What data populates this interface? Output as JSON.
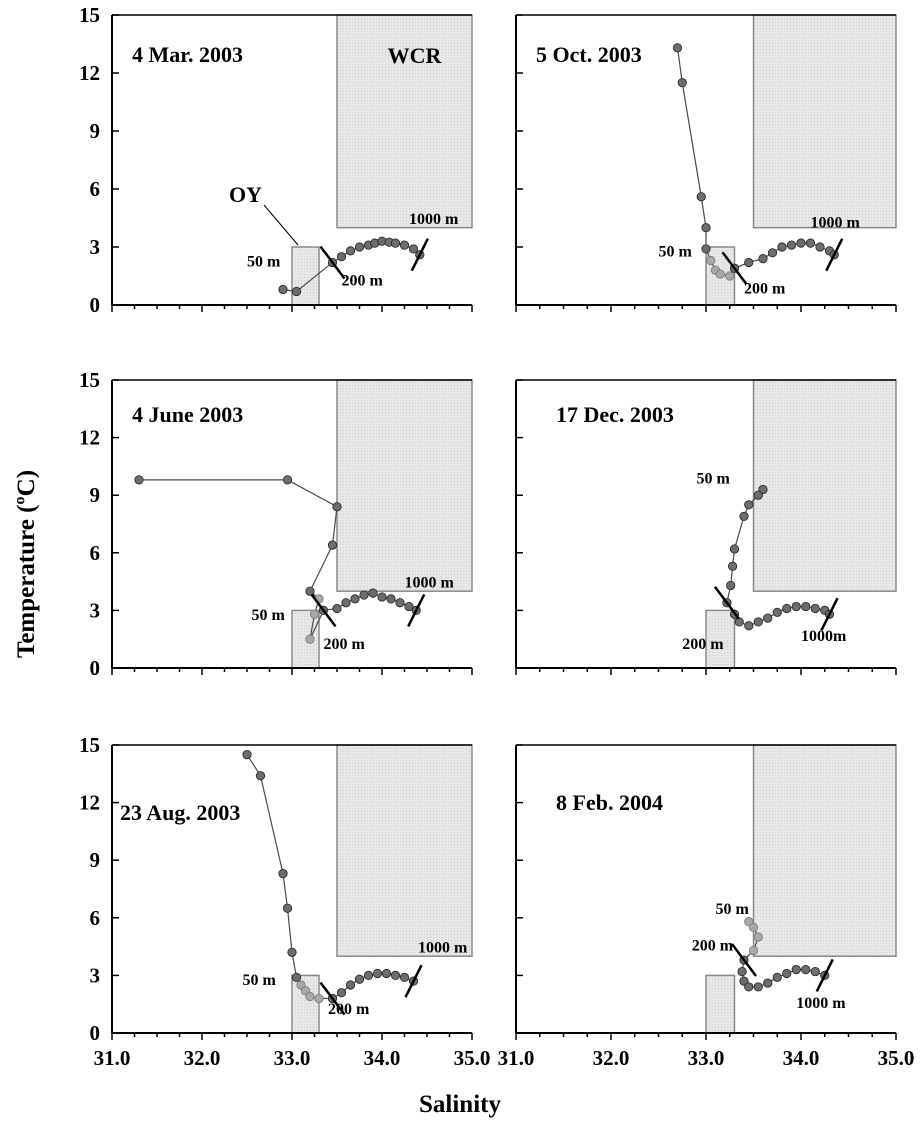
{
  "y_axis_label": "Temperature (ºC)",
  "x_axis_label": "Salinity",
  "colors": {
    "box_fill": "#e7e7e7",
    "box_stroke": "#8a8a8a",
    "point_dark": "#6d6d6d",
    "point_light": "#a8a8a8",
    "line": "#4a4a4a"
  },
  "chart_data": [
    {
      "type": "scatter",
      "title": "4 Mar. 2003",
      "xlim": [
        31.0,
        35.0
      ],
      "ylim": [
        0,
        15
      ],
      "xticks": [
        "31.0",
        "32.0",
        "33.0",
        "34.0",
        "35.0"
      ],
      "yticks": [
        "0",
        "3",
        "6",
        "9",
        "12",
        "15"
      ],
      "show_x_tick_labels": false,
      "show_y_tick_labels": true,
      "regions": [
        {
          "label": "OY",
          "x": [
            33.0,
            33.3
          ],
          "y": [
            0,
            3
          ]
        },
        {
          "label": "WCR",
          "x": [
            33.5,
            35.0
          ],
          "y": [
            4,
            15
          ]
        }
      ],
      "surface_points": [
        {
          "x": 32.9,
          "y": 0.8
        },
        {
          "x": 33.05,
          "y": 0.7
        }
      ],
      "upper_points": [],
      "deep_points": [
        {
          "x": 33.45,
          "y": 2.2
        },
        {
          "x": 33.55,
          "y": 2.5
        },
        {
          "x": 33.65,
          "y": 2.8
        },
        {
          "x": 33.75,
          "y": 3.0
        },
        {
          "x": 33.85,
          "y": 3.1
        },
        {
          "x": 33.92,
          "y": 3.2
        },
        {
          "x": 34.0,
          "y": 3.3
        },
        {
          "x": 34.08,
          "y": 3.25
        },
        {
          "x": 34.15,
          "y": 3.2
        },
        {
          "x": 34.25,
          "y": 3.1
        },
        {
          "x": 34.35,
          "y": 2.9
        },
        {
          "x": 34.42,
          "y": 2.6
        }
      ],
      "labels": [
        {
          "text": "50 m",
          "x": 32.5,
          "y": 2.0
        },
        {
          "text": "200 m",
          "x": 33.55,
          "y": 1.0
        },
        {
          "text": "1000 m",
          "x": 34.3,
          "y": 4.2
        }
      ]
    },
    {
      "type": "scatter",
      "title": "5 Oct. 2003",
      "xlim": [
        31.0,
        35.0
      ],
      "ylim": [
        0,
        15
      ],
      "xticks": [
        "31.0",
        "32.0",
        "33.0",
        "34.0",
        "35.0"
      ],
      "yticks": [
        "0",
        "3",
        "6",
        "9",
        "12",
        "15"
      ],
      "show_x_tick_labels": false,
      "show_y_tick_labels": false,
      "regions": [
        {
          "label": "",
          "x": [
            33.0,
            33.3
          ],
          "y": [
            0,
            3
          ]
        },
        {
          "label": "",
          "x": [
            33.5,
            35.0
          ],
          "y": [
            4,
            15
          ]
        }
      ],
      "surface_points": [
        {
          "x": 32.7,
          "y": 13.3
        },
        {
          "x": 32.75,
          "y": 11.5
        },
        {
          "x": 32.95,
          "y": 5.6
        },
        {
          "x": 33.0,
          "y": 4.0
        },
        {
          "x": 33.0,
          "y": 2.9
        }
      ],
      "upper_points": [
        {
          "x": 33.05,
          "y": 2.3
        },
        {
          "x": 33.1,
          "y": 1.8
        },
        {
          "x": 33.15,
          "y": 1.6
        },
        {
          "x": 33.25,
          "y": 1.5
        }
      ],
      "deep_points": [
        {
          "x": 33.3,
          "y": 1.9
        },
        {
          "x": 33.45,
          "y": 2.2
        },
        {
          "x": 33.6,
          "y": 2.4
        },
        {
          "x": 33.7,
          "y": 2.7
        },
        {
          "x": 33.8,
          "y": 3.0
        },
        {
          "x": 33.9,
          "y": 3.1
        },
        {
          "x": 34.0,
          "y": 3.2
        },
        {
          "x": 34.1,
          "y": 3.2
        },
        {
          "x": 34.2,
          "y": 3.0
        },
        {
          "x": 34.3,
          "y": 2.8
        },
        {
          "x": 34.35,
          "y": 2.6
        }
      ],
      "labels": [
        {
          "text": "50 m",
          "x": 32.5,
          "y": 2.5
        },
        {
          "text": "200 m",
          "x": 33.4,
          "y": 0.6
        },
        {
          "text": "1000 m",
          "x": 34.1,
          "y": 4.0
        }
      ]
    },
    {
      "type": "scatter",
      "title": "4 June 2003",
      "xlim": [
        31.0,
        35.0
      ],
      "ylim": [
        0,
        15
      ],
      "xticks": [
        "31.0",
        "32.0",
        "33.0",
        "34.0",
        "35.0"
      ],
      "yticks": [
        "0",
        "3",
        "6",
        "9",
        "12",
        "15"
      ],
      "show_x_tick_labels": false,
      "show_y_tick_labels": true,
      "regions": [
        {
          "label": "",
          "x": [
            33.0,
            33.3
          ],
          "y": [
            0,
            3
          ]
        },
        {
          "label": "",
          "x": [
            33.5,
            35.0
          ],
          "y": [
            4,
            15
          ]
        }
      ],
      "surface_points": [
        {
          "x": 31.3,
          "y": 9.8
        },
        {
          "x": 32.95,
          "y": 9.8
        },
        {
          "x": 33.5,
          "y": 8.4
        },
        {
          "x": 33.45,
          "y": 6.4
        },
        {
          "x": 33.2,
          "y": 4.0
        }
      ],
      "upper_points": [
        {
          "x": 33.3,
          "y": 3.6
        },
        {
          "x": 33.25,
          "y": 2.8
        },
        {
          "x": 33.2,
          "y": 1.5
        }
      ],
      "deep_points": [
        {
          "x": 33.35,
          "y": 3.0
        },
        {
          "x": 33.5,
          "y": 3.1
        },
        {
          "x": 33.6,
          "y": 3.4
        },
        {
          "x": 33.7,
          "y": 3.6
        },
        {
          "x": 33.8,
          "y": 3.8
        },
        {
          "x": 33.9,
          "y": 3.9
        },
        {
          "x": 34.0,
          "y": 3.7
        },
        {
          "x": 34.1,
          "y": 3.6
        },
        {
          "x": 34.2,
          "y": 3.4
        },
        {
          "x": 34.3,
          "y": 3.2
        },
        {
          "x": 34.38,
          "y": 3.0
        }
      ],
      "labels": [
        {
          "text": "50 m",
          "x": 32.55,
          "y": 2.5
        },
        {
          "text": "200 m",
          "x": 33.35,
          "y": 1.0
        },
        {
          "text": "1000 m",
          "x": 34.25,
          "y": 4.2
        }
      ]
    },
    {
      "type": "scatter",
      "title": "17 Dec. 2003",
      "xlim": [
        31.0,
        35.0
      ],
      "ylim": [
        0,
        15
      ],
      "xticks": [
        "31.0",
        "32.0",
        "33.0",
        "34.0",
        "35.0"
      ],
      "yticks": [
        "0",
        "3",
        "6",
        "9",
        "12",
        "15"
      ],
      "show_x_tick_labels": false,
      "show_y_tick_labels": false,
      "regions": [
        {
          "label": "",
          "x": [
            33.0,
            33.3
          ],
          "y": [
            0,
            3
          ]
        },
        {
          "label": "",
          "x": [
            33.5,
            35.0
          ],
          "y": [
            4,
            15
          ]
        }
      ],
      "surface_points": [
        {
          "x": 33.6,
          "y": 9.3
        },
        {
          "x": 33.55,
          "y": 9.0
        },
        {
          "x": 33.45,
          "y": 8.5
        },
        {
          "x": 33.4,
          "y": 7.9
        },
        {
          "x": 33.3,
          "y": 6.2
        },
        {
          "x": 33.28,
          "y": 5.3
        },
        {
          "x": 33.26,
          "y": 4.3
        }
      ],
      "upper_points": [],
      "deep_points": [
        {
          "x": 33.22,
          "y": 3.4
        },
        {
          "x": 33.3,
          "y": 2.8
        },
        {
          "x": 33.35,
          "y": 2.4
        },
        {
          "x": 33.45,
          "y": 2.2
        },
        {
          "x": 33.55,
          "y": 2.4
        },
        {
          "x": 33.65,
          "y": 2.6
        },
        {
          "x": 33.75,
          "y": 2.9
        },
        {
          "x": 33.85,
          "y": 3.1
        },
        {
          "x": 33.95,
          "y": 3.2
        },
        {
          "x": 34.05,
          "y": 3.2
        },
        {
          "x": 34.15,
          "y": 3.1
        },
        {
          "x": 34.25,
          "y": 3.0
        },
        {
          "x": 34.3,
          "y": 2.8
        }
      ],
      "labels": [
        {
          "text": "50 m",
          "x": 32.9,
          "y": 9.6
        },
        {
          "text": "200 m",
          "x": 32.75,
          "y": 1.0
        },
        {
          "text": "1000m",
          "x": 34.0,
          "y": 1.4
        }
      ]
    },
    {
      "type": "scatter",
      "title": "23 Aug. 2003",
      "xlim": [
        31.0,
        35.0
      ],
      "ylim": [
        0,
        15
      ],
      "xticks": [
        "31.0",
        "32.0",
        "33.0",
        "34.0",
        "35.0"
      ],
      "yticks": [
        "0",
        "3",
        "6",
        "9",
        "12",
        "15"
      ],
      "show_x_tick_labels": true,
      "show_y_tick_labels": true,
      "regions": [
        {
          "label": "",
          "x": [
            33.0,
            33.3
          ],
          "y": [
            0,
            3
          ]
        },
        {
          "label": "",
          "x": [
            33.5,
            35.0
          ],
          "y": [
            4,
            15
          ]
        }
      ],
      "surface_points": [
        {
          "x": 32.5,
          "y": 14.5
        },
        {
          "x": 32.65,
          "y": 13.4
        },
        {
          "x": 32.9,
          "y": 8.3
        },
        {
          "x": 32.95,
          "y": 6.5
        },
        {
          "x": 33.0,
          "y": 4.2
        },
        {
          "x": 33.05,
          "y": 2.9
        }
      ],
      "upper_points": [
        {
          "x": 33.1,
          "y": 2.5
        },
        {
          "x": 33.15,
          "y": 2.2
        },
        {
          "x": 33.2,
          "y": 1.9
        },
        {
          "x": 33.3,
          "y": 1.8
        }
      ],
      "deep_points": [
        {
          "x": 33.45,
          "y": 1.8
        },
        {
          "x": 33.55,
          "y": 2.1
        },
        {
          "x": 33.65,
          "y": 2.5
        },
        {
          "x": 33.75,
          "y": 2.8
        },
        {
          "x": 33.85,
          "y": 3.0
        },
        {
          "x": 33.95,
          "y": 3.1
        },
        {
          "x": 34.05,
          "y": 3.1
        },
        {
          "x": 34.15,
          "y": 3.0
        },
        {
          "x": 34.25,
          "y": 2.9
        },
        {
          "x": 34.35,
          "y": 2.7
        }
      ],
      "labels": [
        {
          "text": "50 m",
          "x": 32.45,
          "y": 2.5
        },
        {
          "text": "200 m",
          "x": 33.4,
          "y": 1.0
        },
        {
          "text": "1000 m",
          "x": 34.4,
          "y": 4.2
        }
      ]
    },
    {
      "type": "scatter",
      "title": "8 Feb. 2004",
      "xlim": [
        31.0,
        35.0
      ],
      "ylim": [
        0,
        15
      ],
      "xticks": [
        "31.0",
        "32.0",
        "33.0",
        "34.0",
        "35.0"
      ],
      "yticks": [
        "0",
        "3",
        "6",
        "9",
        "12",
        "15"
      ],
      "show_x_tick_labels": true,
      "show_y_tick_labels": false,
      "regions": [
        {
          "label": "",
          "x": [
            33.0,
            33.3
          ],
          "y": [
            0,
            3
          ]
        },
        {
          "label": "",
          "x": [
            33.5,
            35.0
          ],
          "y": [
            4,
            15
          ]
        }
      ],
      "surface_points": [],
      "upper_points": [
        {
          "x": 33.45,
          "y": 5.8
        },
        {
          "x": 33.5,
          "y": 5.5
        },
        {
          "x": 33.55,
          "y": 5.0
        },
        {
          "x": 33.5,
          "y": 4.3
        }
      ],
      "deep_points": [
        {
          "x": 33.4,
          "y": 3.8
        },
        {
          "x": 33.38,
          "y": 3.2
        },
        {
          "x": 33.4,
          "y": 2.7
        },
        {
          "x": 33.45,
          "y": 2.4
        },
        {
          "x": 33.55,
          "y": 2.4
        },
        {
          "x": 33.65,
          "y": 2.6
        },
        {
          "x": 33.75,
          "y": 2.9
        },
        {
          "x": 33.85,
          "y": 3.1
        },
        {
          "x": 33.95,
          "y": 3.3
        },
        {
          "x": 34.05,
          "y": 3.3
        },
        {
          "x": 34.15,
          "y": 3.2
        },
        {
          "x": 34.25,
          "y": 3.0
        }
      ],
      "labels": [
        {
          "text": "50 m",
          "x": 33.1,
          "y": 6.2
        },
        {
          "text": "200 m",
          "x": 32.85,
          "y": 4.3
        },
        {
          "text": "1000 m",
          "x": 33.95,
          "y": 1.3
        }
      ]
    }
  ]
}
